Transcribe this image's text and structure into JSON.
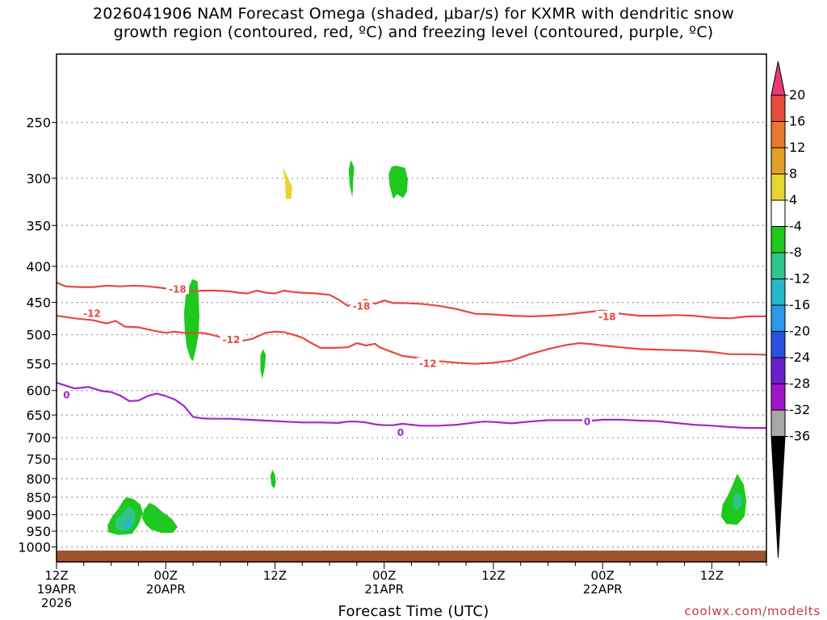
{
  "title_line1": "2026041906 NAM Forecast Omega (shaded, μbar/s) for KXMR with dendritic snow",
  "title_line2": "growth region (contoured, red, ºC) and freezing level (contoured, purple, ºC)",
  "xlabel": "Forecast Time (UTC)",
  "credit": "coolwx.com/modelts",
  "chart_data": {
    "type": "time-height",
    "time_axis": {
      "start_hour": 6,
      "end_hour": 84,
      "unit": "forecast hours from 2026041906",
      "ticks": [
        {
          "h": 6,
          "lines": [
            "12Z",
            "19APR",
            "2026"
          ]
        },
        {
          "h": 18,
          "lines": [
            "00Z",
            "20APR"
          ]
        },
        {
          "h": 30,
          "lines": [
            "12Z"
          ]
        },
        {
          "h": 42,
          "lines": [
            "00Z",
            "21APR"
          ]
        },
        {
          "h": 54,
          "lines": [
            "12Z"
          ]
        },
        {
          "h": 66,
          "lines": [
            "00Z",
            "22APR"
          ]
        },
        {
          "h": 78,
          "lines": [
            "12Z"
          ]
        }
      ]
    },
    "pressure_axis": {
      "unit": "hPa",
      "top": 200,
      "bottom": 1050,
      "ticks": [
        250,
        300,
        350,
        400,
        450,
        500,
        550,
        600,
        650,
        700,
        750,
        800,
        850,
        900,
        950,
        1000
      ]
    },
    "colorbar": {
      "labels": [
        "20",
        "16",
        "12",
        "8",
        "4",
        "-4",
        "-8",
        "-12",
        "-16",
        "-20",
        "-24",
        "-28",
        "-32",
        "-36"
      ],
      "colors": [
        "#e8387a",
        "#e84a3c",
        "#e8782e",
        "#e0a02a",
        "#e6d431",
        "#ffffff",
        "#1ec81e",
        "#2fc48a",
        "#23b8c8",
        "#2a9ae8",
        "#2a52e0",
        "#6a1ec8",
        "#a014c8",
        "#a8a8a8",
        "#000000"
      ]
    },
    "contours": [
      {
        "name": "-18",
        "color": "#e8473f",
        "labels": [
          [
            19.3,
            431
          ],
          [
            39.5,
            455
          ],
          [
            66.5,
            471
          ]
        ],
        "points": [
          [
            -0.2,
            418
          ],
          [
            2,
            417
          ],
          [
            4,
            417
          ],
          [
            5.5,
            419
          ],
          [
            7,
            427
          ],
          [
            8.5,
            428
          ],
          [
            10,
            428
          ],
          [
            11.5,
            426
          ],
          [
            13,
            427
          ],
          [
            14.5,
            426
          ],
          [
            16,
            427
          ],
          [
            17.5,
            429
          ],
          [
            19,
            432
          ],
          [
            20.5,
            435
          ],
          [
            22,
            433
          ],
          [
            23.5,
            433
          ],
          [
            25,
            434
          ],
          [
            26,
            436
          ],
          [
            27,
            437
          ],
          [
            28,
            433
          ],
          [
            29,
            436
          ],
          [
            30,
            437
          ],
          [
            31,
            433
          ],
          [
            32,
            435
          ],
          [
            33,
            436
          ],
          [
            34.5,
            437
          ],
          [
            36,
            439
          ],
          [
            37,
            446
          ],
          [
            38,
            455
          ],
          [
            39,
            450
          ],
          [
            40,
            446
          ],
          [
            41,
            452
          ],
          [
            42,
            447
          ],
          [
            43,
            451
          ],
          [
            44,
            451
          ],
          [
            46,
            452
          ],
          [
            48,
            455
          ],
          [
            50,
            460
          ],
          [
            52,
            467
          ],
          [
            54,
            468
          ],
          [
            56,
            470
          ],
          [
            58,
            471
          ],
          [
            60,
            470
          ],
          [
            62,
            468
          ],
          [
            64,
            465
          ],
          [
            66,
            462
          ],
          [
            68,
            467
          ],
          [
            70,
            470
          ],
          [
            72,
            470
          ],
          [
            74,
            469
          ],
          [
            76,
            470
          ],
          [
            78,
            473
          ],
          [
            80,
            474
          ],
          [
            82,
            471
          ],
          [
            84.2,
            471
          ]
        ]
      },
      {
        "name": "-12",
        "color": "#e8473f",
        "labels": [
          [
            9.9,
            466
          ],
          [
            25.2,
            508
          ],
          [
            46.8,
            549
          ]
        ],
        "points": [
          [
            -0.2,
            464
          ],
          [
            3,
            466
          ],
          [
            6,
            470
          ],
          [
            8,
            474
          ],
          [
            10,
            477
          ],
          [
            11.5,
            482
          ],
          [
            12.5,
            478
          ],
          [
            13.5,
            487
          ],
          [
            15,
            488
          ],
          [
            16.5,
            493
          ],
          [
            18,
            497
          ],
          [
            19,
            495
          ],
          [
            20,
            497
          ],
          [
            22,
            497
          ],
          [
            23,
            500
          ],
          [
            24.5,
            506
          ],
          [
            26,
            511
          ],
          [
            27.5,
            507
          ],
          [
            29,
            497
          ],
          [
            30,
            495
          ],
          [
            31,
            496
          ],
          [
            32,
            500
          ],
          [
            33,
            505
          ],
          [
            34,
            514
          ],
          [
            35,
            522
          ],
          [
            36.5,
            522
          ],
          [
            38,
            521
          ],
          [
            39,
            514
          ],
          [
            40,
            518
          ],
          [
            41,
            515
          ],
          [
            41.5,
            521
          ],
          [
            42,
            524
          ],
          [
            43,
            530
          ],
          [
            44,
            536
          ],
          [
            46,
            540
          ],
          [
            48,
            545
          ],
          [
            50,
            548
          ],
          [
            52,
            550
          ],
          [
            54,
            548
          ],
          [
            56,
            544
          ],
          [
            58,
            533
          ],
          [
            60,
            524
          ],
          [
            62,
            517
          ],
          [
            63.5,
            514
          ],
          [
            65,
            516
          ],
          [
            66,
            518
          ],
          [
            68,
            521
          ],
          [
            70,
            524
          ],
          [
            72,
            525
          ],
          [
            74,
            526
          ],
          [
            76,
            527
          ],
          [
            78,
            529
          ],
          [
            80,
            533
          ],
          [
            82,
            533
          ],
          [
            84.2,
            534
          ]
        ]
      },
      {
        "name": "0",
        "color": "#a128c8",
        "labels": [
          [
            7.1,
            608
          ],
          [
            43.8,
            688
          ],
          [
            64.3,
            664
          ]
        ],
        "points": [
          [
            -0.2,
            570
          ],
          [
            2,
            573
          ],
          [
            4,
            576
          ],
          [
            6,
            585
          ],
          [
            8,
            596
          ],
          [
            9.5,
            593
          ],
          [
            11,
            601
          ],
          [
            12,
            603
          ],
          [
            13,
            610
          ],
          [
            14,
            621
          ],
          [
            15,
            620
          ],
          [
            16,
            611
          ],
          [
            17,
            606
          ],
          [
            18,
            611
          ],
          [
            19,
            618
          ],
          [
            20,
            631
          ],
          [
            21,
            654
          ],
          [
            22,
            657
          ],
          [
            23,
            658
          ],
          [
            25,
            658
          ],
          [
            27,
            660
          ],
          [
            29,
            662
          ],
          [
            31,
            664
          ],
          [
            33,
            666
          ],
          [
            35,
            666
          ],
          [
            37,
            667
          ],
          [
            38,
            664
          ],
          [
            39,
            664
          ],
          [
            40,
            666
          ],
          [
            41,
            670
          ],
          [
            42,
            672
          ],
          [
            43,
            672
          ],
          [
            44,
            669
          ],
          [
            45,
            671
          ],
          [
            46,
            673
          ],
          [
            48,
            673
          ],
          [
            50,
            671
          ],
          [
            52,
            666
          ],
          [
            53,
            664
          ],
          [
            54,
            665
          ],
          [
            56,
            668
          ],
          [
            58,
            664
          ],
          [
            60,
            661
          ],
          [
            62,
            661
          ],
          [
            64,
            661
          ],
          [
            65,
            662
          ],
          [
            66,
            660
          ],
          [
            68,
            660
          ],
          [
            70,
            662
          ],
          [
            72,
            663
          ],
          [
            74,
            667
          ],
          [
            76,
            671
          ],
          [
            78,
            673
          ],
          [
            80,
            676
          ],
          [
            82,
            678
          ],
          [
            84.2,
            678
          ]
        ]
      }
    ],
    "omega_cells": [
      {
        "color": "#e6d431",
        "points": [
          [
            30.9,
            290
          ],
          [
            31.4,
            299
          ],
          [
            31.9,
            309
          ],
          [
            31.8,
            321
          ],
          [
            31.2,
            321
          ],
          [
            31.1,
            303
          ],
          [
            30.9,
            292
          ]
        ]
      },
      {
        "color": "#1ec81e",
        "points": [
          [
            38.4,
            283
          ],
          [
            38.7,
            290
          ],
          [
            38.6,
            302
          ],
          [
            38.5,
            320
          ],
          [
            38.2,
            306
          ],
          [
            38.1,
            292
          ],
          [
            38.3,
            284
          ]
        ]
      },
      {
        "color": "#1ec81e",
        "points": [
          [
            43.3,
            288
          ],
          [
            44.3,
            290
          ],
          [
            44.6,
            301
          ],
          [
            44.5,
            313
          ],
          [
            44.1,
            320
          ],
          [
            43.4,
            316
          ],
          [
            43.0,
            321
          ],
          [
            42.6,
            308
          ],
          [
            42.5,
            296
          ],
          [
            42.8,
            289
          ]
        ]
      },
      {
        "color": "#1ec81e",
        "points": [
          [
            20.9,
            417
          ],
          [
            21.5,
            420
          ],
          [
            21.6,
            440
          ],
          [
            21.7,
            470
          ],
          [
            21.6,
            500
          ],
          [
            21.3,
            525
          ],
          [
            21.0,
            545
          ],
          [
            20.7,
            540
          ],
          [
            20.3,
            520
          ],
          [
            20.1,
            496
          ],
          [
            20.0,
            466
          ],
          [
            20.2,
            440
          ]
        ]
      },
      {
        "color": "#1ec81e",
        "points": [
          [
            28.7,
            524
          ],
          [
            29.0,
            534
          ],
          [
            28.9,
            555
          ],
          [
            28.6,
            578
          ],
          [
            28.4,
            560
          ],
          [
            28.4,
            535
          ]
        ]
      },
      {
        "color": "#1ec81e",
        "points": [
          [
            29.7,
            777
          ],
          [
            30.0,
            790
          ],
          [
            30.1,
            810
          ],
          [
            29.9,
            827
          ],
          [
            29.6,
            817
          ],
          [
            29.5,
            794
          ]
        ]
      },
      {
        "color": "#1ec81e",
        "points": [
          [
            13.7,
            850
          ],
          [
            14.5,
            856
          ],
          [
            15.2,
            870
          ],
          [
            15.5,
            895
          ],
          [
            15.0,
            930
          ],
          [
            14.3,
            958
          ],
          [
            12.8,
            962
          ],
          [
            11.7,
            953
          ],
          [
            11.6,
            932
          ],
          [
            12.1,
            906
          ],
          [
            12.8,
            882
          ],
          [
            13.3,
            860
          ]
        ]
      },
      {
        "color": "#2fc48a",
        "points": [
          [
            14.0,
            876
          ],
          [
            14.6,
            888
          ],
          [
            14.7,
            915
          ],
          [
            14.0,
            946
          ],
          [
            13.1,
            950
          ],
          [
            12.4,
            938
          ],
          [
            12.6,
            912
          ],
          [
            13.4,
            888
          ]
        ]
      },
      {
        "color": "#23b8c8",
        "points": [
          [
            14.1,
            913
          ],
          [
            14.4,
            930
          ],
          [
            13.9,
            945
          ],
          [
            13.3,
            940
          ],
          [
            13.5,
            921
          ]
        ]
      },
      {
        "color": "#1ec81e",
        "points": [
          [
            16.2,
            866
          ],
          [
            16.8,
            873
          ],
          [
            17.6,
            891
          ],
          [
            18.7,
            913
          ],
          [
            19.3,
            937
          ],
          [
            18.8,
            955
          ],
          [
            17.5,
            955
          ],
          [
            16.4,
            945
          ],
          [
            15.8,
            930
          ],
          [
            15.4,
            910
          ],
          [
            15.6,
            886
          ]
        ]
      },
      {
        "color": "#1ec81e",
        "points": [
          [
            80.8,
            787
          ],
          [
            81.5,
            815
          ],
          [
            81.8,
            860
          ],
          [
            81.6,
            905
          ],
          [
            80.8,
            930
          ],
          [
            79.6,
            928
          ],
          [
            79.0,
            905
          ],
          [
            79.2,
            870
          ],
          [
            79.9,
            838
          ],
          [
            80.4,
            810
          ]
        ]
      },
      {
        "color": "#2fc48a",
        "points": [
          [
            80.7,
            838
          ],
          [
            81.3,
            846
          ],
          [
            81.3,
            872
          ],
          [
            80.8,
            888
          ],
          [
            80.3,
            876
          ],
          [
            80.4,
            850
          ]
        ]
      }
    ],
    "terrain": {
      "color": "#a0522d",
      "top_pressure": 1012,
      "label": "ground"
    }
  }
}
